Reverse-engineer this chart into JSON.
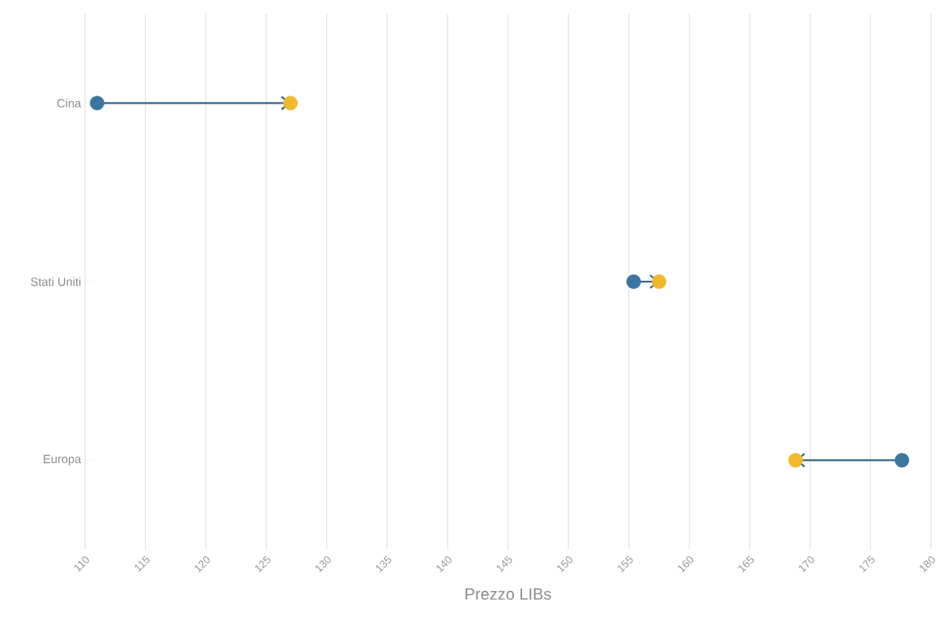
{
  "chart_data": {
    "type": "scatter",
    "orientation": "horizontal",
    "xlabel": "Prezzo LIBs",
    "categories": [
      "Cina",
      "Stati Uniti",
      "Europa"
    ],
    "series": [
      {
        "color": "#3a76a0",
        "values": [
          111,
          155.4,
          177.6
        ]
      },
      {
        "color": "#f0b92c",
        "values": [
          127,
          157.5,
          168.8
        ]
      }
    ],
    "xlim": [
      110,
      180
    ],
    "xticks": [
      110,
      115,
      120,
      125,
      130,
      135,
      140,
      145,
      150,
      155,
      160,
      165,
      170,
      175,
      180
    ],
    "grid": "x"
  }
}
